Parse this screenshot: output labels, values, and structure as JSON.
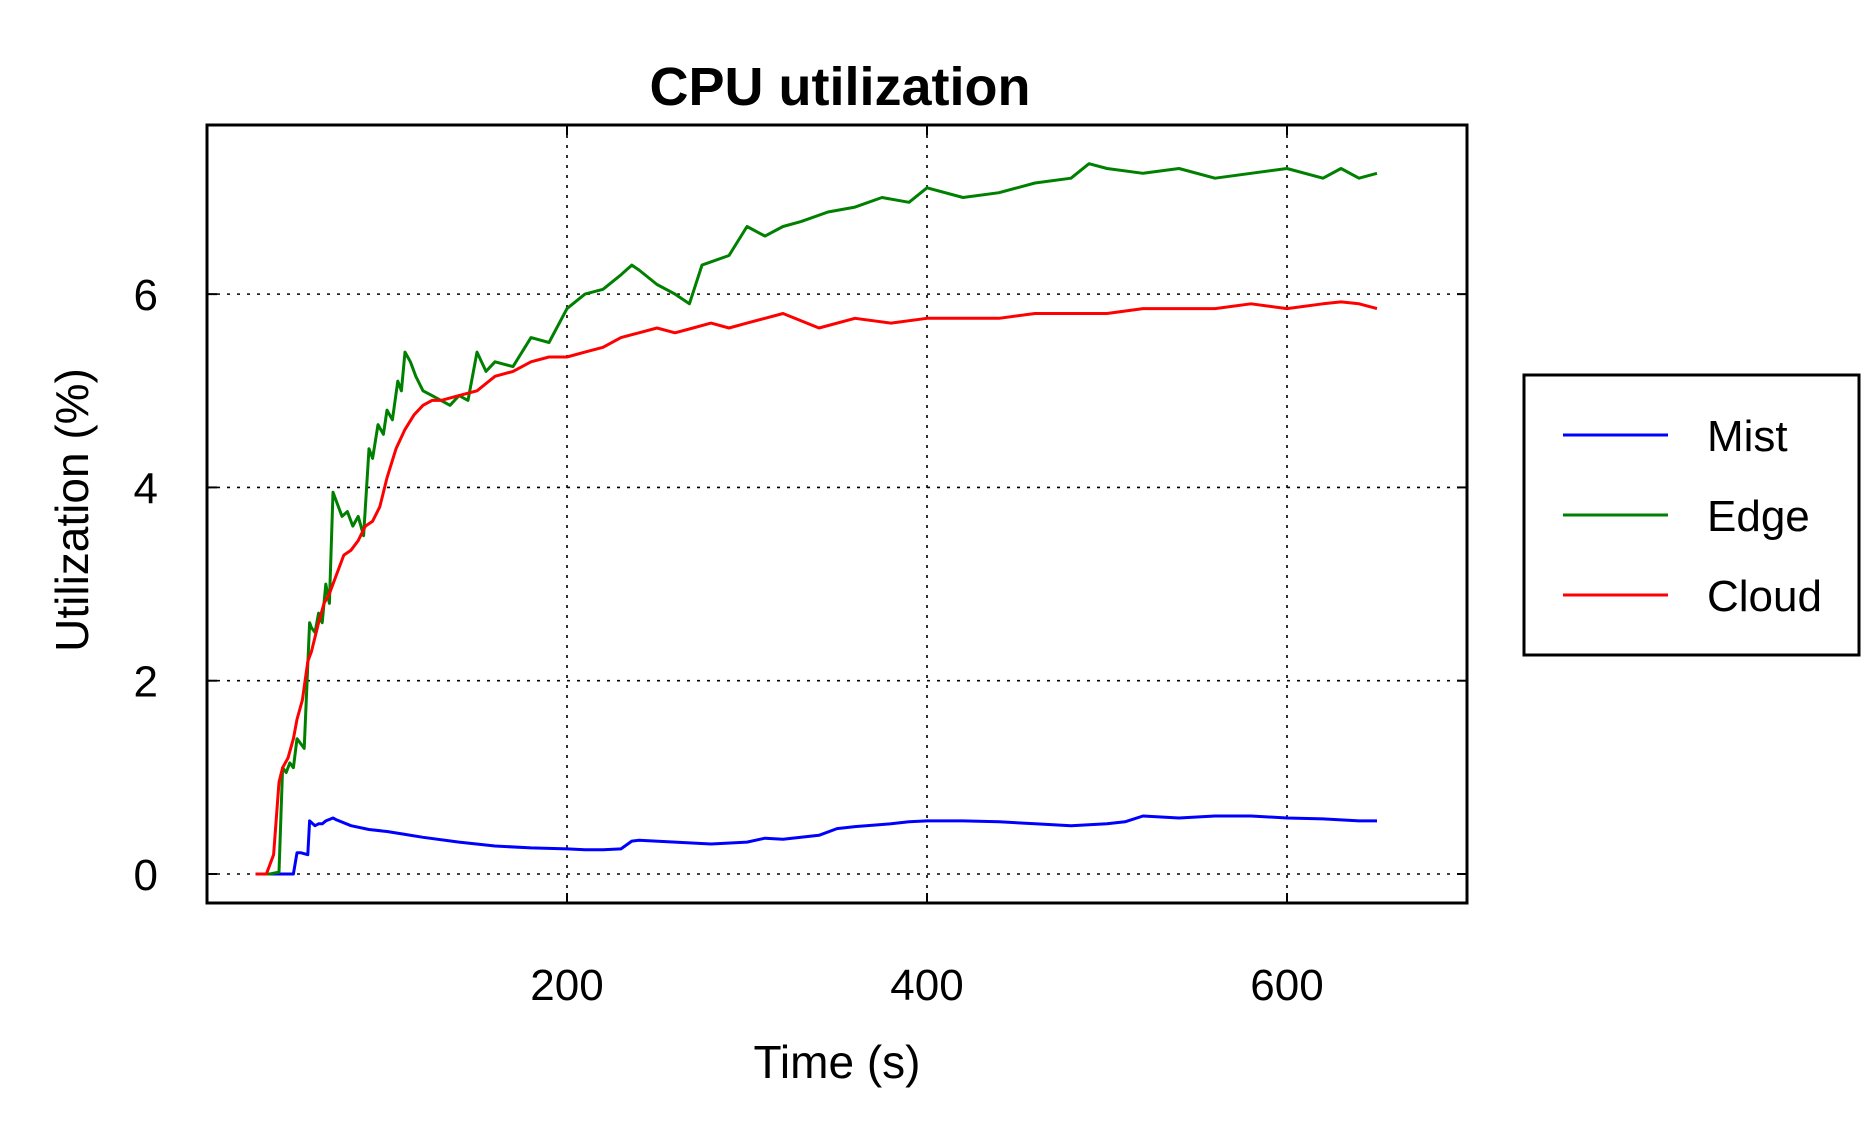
{
  "chart_data": {
    "type": "line",
    "title": "CPU utilization",
    "xlabel": "Time (s)",
    "ylabel": "Utilization (%)",
    "xlim": [
      0,
      700
    ],
    "ylim": [
      -0.3,
      7.75
    ],
    "xticks": [
      200,
      400,
      600
    ],
    "yticks": [
      0,
      2,
      4,
      6
    ],
    "grid": true,
    "legend_position": "right-outside",
    "series": [
      {
        "name": "Mist",
        "color": "#0000ff",
        "x": [
          27,
          40,
          44,
          46,
          48,
          50,
          52,
          56,
          57,
          60,
          62,
          64,
          66,
          70,
          72,
          80,
          90,
          100,
          110,
          120,
          140,
          160,
          180,
          200,
          210,
          220,
          230,
          236,
          240,
          260,
          280,
          300,
          310,
          320,
          340,
          350,
          360,
          380,
          390,
          400,
          420,
          440,
          460,
          480,
          500,
          510,
          520,
          530,
          540,
          560,
          580,
          600,
          620,
          640,
          650
        ],
        "y": [
          0,
          0,
          0,
          0,
          0,
          0.22,
          0.22,
          0.2,
          0.55,
          0.5,
          0.52,
          0.52,
          0.55,
          0.58,
          0.56,
          0.5,
          0.46,
          0.44,
          0.41,
          0.38,
          0.33,
          0.29,
          0.27,
          0.26,
          0.25,
          0.25,
          0.26,
          0.34,
          0.35,
          0.33,
          0.31,
          0.33,
          0.37,
          0.36,
          0.4,
          0.47,
          0.49,
          0.52,
          0.54,
          0.55,
          0.55,
          0.54,
          0.52,
          0.5,
          0.52,
          0.54,
          0.6,
          0.59,
          0.58,
          0.6,
          0.6,
          0.58,
          0.57,
          0.55,
          0.55
        ]
      },
      {
        "name": "Edge",
        "color": "#008000",
        "x": [
          27,
          35,
          40,
          42,
          44,
          46,
          48,
          50,
          52,
          54,
          57,
          58,
          60,
          62,
          64,
          66,
          68,
          70,
          72,
          75,
          78,
          81,
          84,
          87,
          90,
          92,
          95,
          98,
          100,
          103,
          106,
          108,
          110,
          113,
          116,
          120,
          125,
          130,
          135,
          140,
          145,
          150,
          155,
          160,
          170,
          180,
          190,
          200,
          210,
          220,
          230,
          236,
          240,
          250,
          260,
          268,
          275,
          290,
          300,
          310,
          320,
          330,
          345,
          360,
          375,
          390,
          400,
          420,
          440,
          460,
          480,
          490,
          500,
          520,
          540,
          560,
          580,
          600,
          620,
          630,
          640,
          650
        ],
        "y": [
          0,
          0,
          0.02,
          1.1,
          1.05,
          1.15,
          1.1,
          1.4,
          1.35,
          1.3,
          2.6,
          2.55,
          2.5,
          2.7,
          2.6,
          3.0,
          2.8,
          3.95,
          3.85,
          3.7,
          3.75,
          3.6,
          3.7,
          3.5,
          4.4,
          4.3,
          4.65,
          4.55,
          4.8,
          4.7,
          5.1,
          5.0,
          5.4,
          5.3,
          5.15,
          5.0,
          4.95,
          4.9,
          4.85,
          4.95,
          4.9,
          5.4,
          5.2,
          5.3,
          5.25,
          5.55,
          5.5,
          5.85,
          6.0,
          6.05,
          6.2,
          6.3,
          6.25,
          6.1,
          6.0,
          5.9,
          6.3,
          6.4,
          6.7,
          6.6,
          6.7,
          6.75,
          6.85,
          6.9,
          7.0,
          6.95,
          7.1,
          7.0,
          7.05,
          7.15,
          7.2,
          7.35,
          7.3,
          7.25,
          7.3,
          7.2,
          7.25,
          7.3,
          7.2,
          7.3,
          7.2,
          7.25
        ]
      },
      {
        "name": "Cloud",
        "color": "#ff0000",
        "x": [
          27,
          33,
          37,
          40,
          42,
          45,
          48,
          50,
          53,
          56,
          58,
          62,
          65,
          68,
          72,
          76,
          80,
          84,
          88,
          92,
          96,
          100,
          105,
          110,
          115,
          120,
          125,
          130,
          140,
          150,
          160,
          170,
          180,
          190,
          200,
          210,
          220,
          230,
          240,
          250,
          260,
          270,
          280,
          290,
          300,
          310,
          320,
          340,
          360,
          380,
          400,
          420,
          440,
          460,
          480,
          500,
          520,
          540,
          560,
          580,
          600,
          620,
          630,
          640,
          650
        ],
        "y": [
          0,
          0,
          0.2,
          0.95,
          1.1,
          1.2,
          1.4,
          1.6,
          1.8,
          2.2,
          2.3,
          2.6,
          2.8,
          2.9,
          3.1,
          3.3,
          3.35,
          3.45,
          3.6,
          3.65,
          3.8,
          4.1,
          4.4,
          4.6,
          4.75,
          4.85,
          4.9,
          4.9,
          4.95,
          5.0,
          5.15,
          5.2,
          5.3,
          5.35,
          5.35,
          5.4,
          5.45,
          5.55,
          5.6,
          5.65,
          5.6,
          5.65,
          5.7,
          5.65,
          5.7,
          5.75,
          5.8,
          5.65,
          5.75,
          5.7,
          5.75,
          5.75,
          5.75,
          5.8,
          5.8,
          5.8,
          5.85,
          5.85,
          5.85,
          5.9,
          5.85,
          5.9,
          5.92,
          5.9,
          5.85
        ]
      }
    ]
  }
}
